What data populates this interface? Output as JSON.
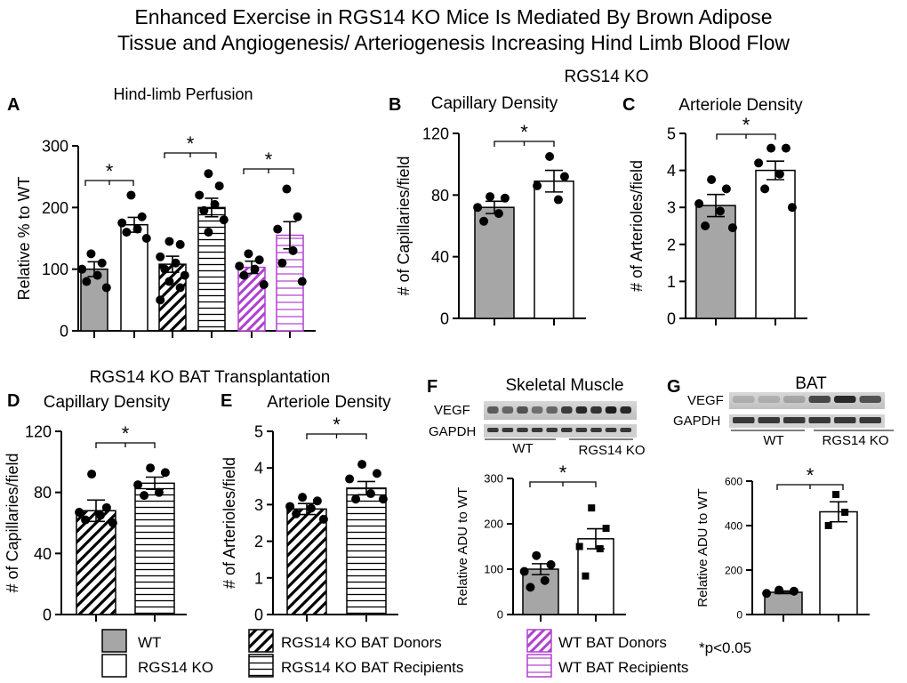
{
  "title_line1": "Enhanced Exercise in RGS14 KO Mice Is Mediated By Brown Adipose",
  "title_line2": "Tissue and  Angiogenesis/ Arteriogenesis Increasing Hind Limb Blood Flow",
  "section_rgs14ko": "RGS14 KO",
  "section_bat": "RGS14 KO BAT Transplantation",
  "legend": {
    "wt": "WT",
    "rgs14ko": "RGS14 KO",
    "ko_bat_donors": "RGS14 KO BAT Donors",
    "ko_bat_recipients": "RGS14 KO BAT Recipients",
    "wt_bat_donors": "WT BAT Donors",
    "wt_bat_recipients": "WT BAT Recipients"
  },
  "pvalue_note": "*p<0.05",
  "colors": {
    "wt_fill": "#a6a6a6",
    "purple": "#b040d0",
    "black": "#000000"
  },
  "blots": {
    "F": {
      "rows": [
        "VEGF",
        "GAPDH"
      ],
      "groups": [
        "WT",
        "RGS14 KO"
      ]
    },
    "G": {
      "rows": [
        "VEGF",
        "GAPDH"
      ],
      "groups": [
        "WT",
        "RGS14 KO"
      ]
    }
  },
  "chart_data": [
    {
      "panel": "A",
      "type": "bar",
      "title": "Hind-limb Perfusion",
      "xlabel": "",
      "ylabel": "Relative % to WT",
      "ylim": [
        0,
        300
      ],
      "yticks": [
        0,
        100,
        200,
        300
      ],
      "categories": [
        "WT",
        "RGS14 KO",
        "RGS14 KO BAT Donors",
        "RGS14 KO BAT Recipients",
        "WT BAT Donors",
        "WT BAT Recipients"
      ],
      "values": [
        100,
        172,
        108,
        200,
        103,
        155
      ],
      "errors": [
        12,
        12,
        13,
        15,
        10,
        22
      ],
      "points": [
        [
          125,
          110,
          100,
          90,
          80,
          70
        ],
        [
          220,
          185,
          175,
          165,
          160,
          150
        ],
        [
          145,
          140,
          120,
          110,
          100,
          90,
          80,
          70,
          50
        ],
        [
          255,
          235,
          220,
          205,
          195,
          180,
          160
        ],
        [
          125,
          115,
          105,
          100,
          90,
          75
        ],
        [
          230,
          185,
          165,
          130,
          110,
          80
        ]
      ],
      "annotations": [
        "*",
        "*",
        "*"
      ]
    },
    {
      "panel": "B",
      "type": "bar",
      "title": "Capillary Density",
      "xlabel": "",
      "ylabel": "# of Capillaries/field",
      "ylim": [
        0,
        120
      ],
      "yticks": [
        0,
        40,
        80,
        120
      ],
      "categories": [
        "WT",
        "RGS14 KO"
      ],
      "values": [
        72,
        89
      ],
      "errors": [
        4,
        7
      ],
      "points": [
        [
          79,
          78,
          72,
          68,
          63
        ],
        [
          105,
          92,
          86,
          77
        ]
      ],
      "annotations": [
        "*"
      ]
    },
    {
      "panel": "C",
      "type": "bar",
      "title": "Arteriole Density",
      "xlabel": "",
      "ylabel": "# of Arterioles/field",
      "ylim": [
        0,
        5
      ],
      "yticks": [
        0,
        1,
        2,
        3,
        4,
        5
      ],
      "categories": [
        "WT",
        "RGS14 KO"
      ],
      "values": [
        3.05,
        4.0
      ],
      "errors": [
        0.3,
        0.25
      ],
      "points": [
        [
          3.75,
          3.5,
          3.1,
          2.9,
          2.5,
          2.45
        ],
        [
          4.6,
          4.6,
          4.2,
          3.9,
          3.5,
          3.0
        ]
      ],
      "annotations": [
        "*"
      ]
    },
    {
      "panel": "D",
      "type": "bar",
      "title": "Capillary Density",
      "xlabel": "",
      "ylabel": "# of Capillaries/field",
      "ylim": [
        0,
        120
      ],
      "yticks": [
        0,
        40,
        80,
        120
      ],
      "categories": [
        "RGS14 KO BAT Donors",
        "RGS14 KO BAT Recipients"
      ],
      "values": [
        68,
        86
      ],
      "errors": [
        7,
        4
      ],
      "points": [
        [
          92,
          70,
          67,
          65,
          62,
          60
        ],
        [
          96,
          93,
          85,
          80,
          78
        ]
      ],
      "annotations": [
        "*"
      ]
    },
    {
      "panel": "E",
      "type": "bar",
      "title": "Arteriole Density",
      "xlabel": "",
      "ylabel": "# of Arterioles/field",
      "ylim": [
        0,
        5
      ],
      "yticks": [
        0,
        1,
        2,
        3,
        4,
        5
      ],
      "categories": [
        "RGS14 KO BAT Donors",
        "RGS14 KO BAT Recipients"
      ],
      "values": [
        2.88,
        3.45
      ],
      "errors": [
        0.15,
        0.18
      ],
      "points": [
        [
          3.2,
          3.1,
          2.95,
          2.9,
          2.75,
          2.6
        ],
        [
          4.1,
          3.85,
          3.7,
          3.3,
          3.15,
          3.15
        ]
      ],
      "annotations": [
        "*"
      ]
    },
    {
      "panel": "F",
      "type": "bar",
      "title": "Skeletal Muscle",
      "xlabel": "",
      "ylabel": "Relative ADU to WT",
      "ylim": [
        0,
        300
      ],
      "yticks": [
        0,
        100,
        200,
        300
      ],
      "categories": [
        "WT",
        "RGS14 KO"
      ],
      "values": [
        100,
        167
      ],
      "errors": [
        12,
        22
      ],
      "points": [
        [
          130,
          110,
          95,
          75,
          60
        ],
        [
          235,
          190,
          150,
          145,
          85
        ]
      ],
      "annotations": [
        "*"
      ]
    },
    {
      "panel": "G",
      "type": "bar",
      "title": "BAT",
      "xlabel": "",
      "ylabel": "Relative ADU to WT",
      "ylim": [
        0,
        600
      ],
      "yticks": [
        0,
        200,
        400,
        600
      ],
      "categories": [
        "WT",
        "RGS14 KO"
      ],
      "values": [
        100,
        462
      ],
      "errors": [
        6,
        45
      ],
      "points": [
        [
          110,
          105,
          95
        ],
        [
          540,
          460,
          400
        ]
      ],
      "annotations": [
        "*"
      ]
    }
  ]
}
